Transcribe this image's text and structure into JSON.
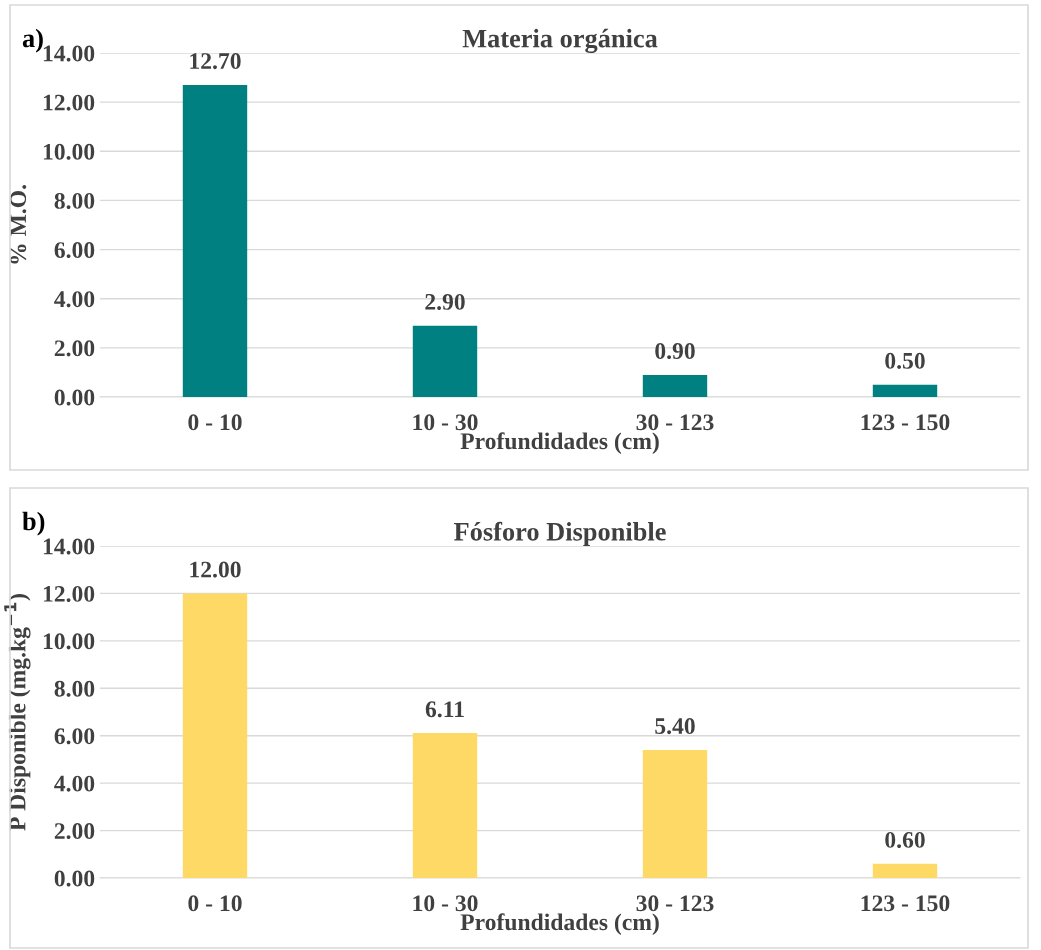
{
  "chart_data": [
    {
      "type": "bar",
      "title": "Materia orgánica",
      "xlabel": "Profundidades (cm)",
      "ylabel": "% M.O.",
      "annotations": [
        "a)"
      ],
      "categories": [
        "0 - 10",
        "10 - 30",
        "30 - 123",
        "123 - 150"
      ],
      "values": [
        12.7,
        2.9,
        0.9,
        0.5
      ],
      "value_labels": [
        "12.70",
        "2.90",
        "0.90",
        "0.50"
      ],
      "color": "#008080",
      "ylim": [
        0,
        14
      ],
      "yticks": [
        {
          "value": 0,
          "label": "0.00"
        },
        {
          "value": 2,
          "label": "2.00"
        },
        {
          "value": 4,
          "label": "4.00"
        },
        {
          "value": 6,
          "label": "6.00"
        },
        {
          "value": 8,
          "label": "8.00"
        },
        {
          "value": 10,
          "label": "10.00"
        },
        {
          "value": 12,
          "label": "12.00"
        },
        {
          "value": 14,
          "label": "14.00"
        }
      ],
      "grid": "y",
      "legend": false
    },
    {
      "type": "bar",
      "title": "Fósforo Disponible",
      "xlabel": "Profundidades (cm)",
      "ylabel": "P Disponible (mg.kg$^{−1}$)",
      "annotations": [
        "b)"
      ],
      "categories": [
        "0 - 10",
        "10 - 30",
        "30 - 123",
        "123 - 150"
      ],
      "values": [
        12.0,
        6.11,
        5.4,
        0.6
      ],
      "value_labels": [
        "12.00",
        "6.11",
        "5.40",
        "0.60"
      ],
      "color": "#ffd966",
      "ylim": [
        0,
        14
      ],
      "yticks": [
        {
          "value": 0,
          "label": "0.00"
        },
        {
          "value": 2,
          "label": "2.00"
        },
        {
          "value": 4,
          "label": "4.00"
        },
        {
          "value": 6,
          "label": "6.00"
        },
        {
          "value": 8,
          "label": "8.00"
        },
        {
          "value": 10,
          "label": "10.00"
        },
        {
          "value": 12,
          "label": "12.00"
        },
        {
          "value": 14,
          "label": "14.00"
        }
      ],
      "grid": "y",
      "legend": false
    }
  ]
}
